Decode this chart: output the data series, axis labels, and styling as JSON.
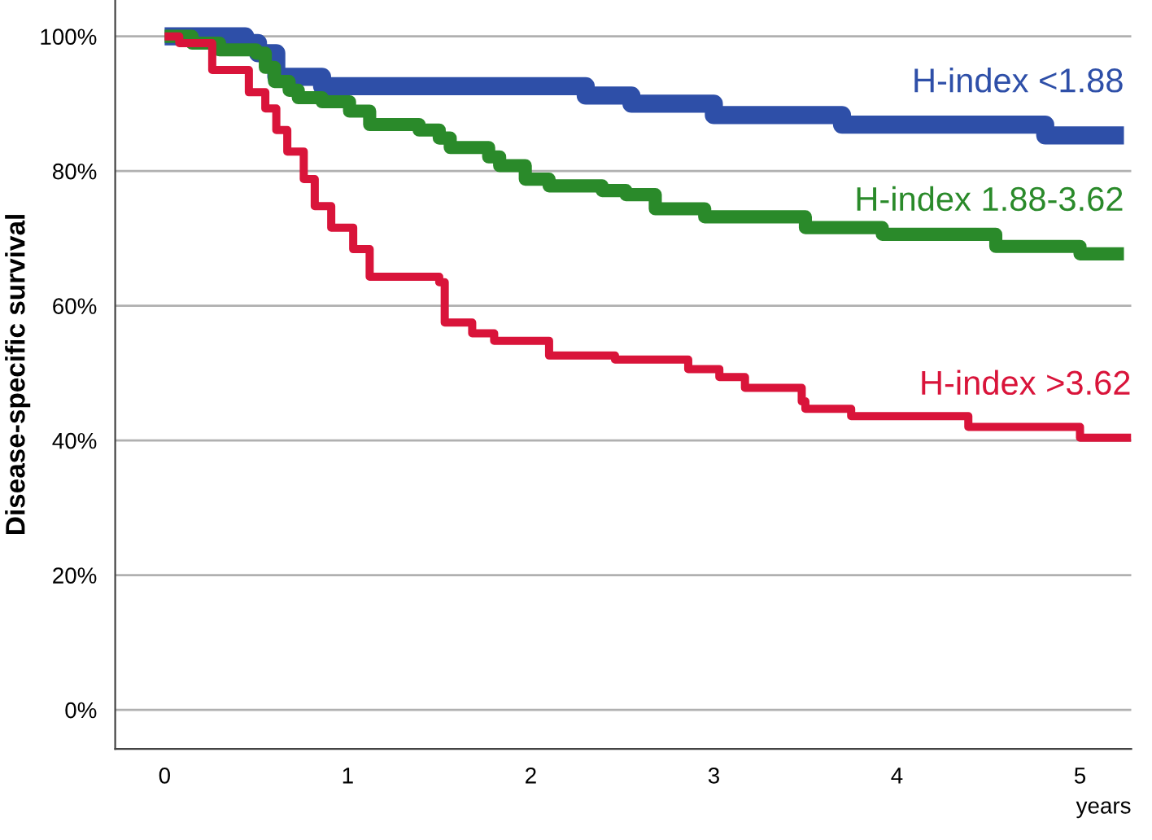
{
  "chart_data": {
    "type": "step",
    "xlabel": "years",
    "ylabel": "Disease-specific survival",
    "xlim": [
      -0.27,
      5.28
    ],
    "ylim": [
      -5.8,
      105.4
    ],
    "xticks": [
      0,
      1,
      2,
      3,
      4,
      5
    ],
    "yticks": [
      {
        "value": 0,
        "label": "0%"
      },
      {
        "value": 20,
        "label": "20%"
      },
      {
        "value": 40,
        "label": "40%"
      },
      {
        "value": 60,
        "label": "60%"
      },
      {
        "value": 80,
        "label": "80%"
      },
      {
        "value": 100,
        "label": "100%"
      }
    ],
    "grid": "y",
    "legend": false,
    "line_style": "solid",
    "marker": "none",
    "series": [
      {
        "name": "H-index <1.88",
        "color": "#2e4fa8",
        "x": [
          0,
          0.44,
          0.51,
          0.61,
          0.86,
          2.3,
          2.55,
          3.0,
          3.7,
          4.81,
          5.24
        ],
        "values": [
          100,
          99,
          97.5,
          94,
          92.6,
          91.2,
          90,
          88.3,
          86.9,
          85.3,
          85.3
        ]
      },
      {
        "name": "H-index 1.88-3.62",
        "color": "#2a8a2a",
        "x": [
          0,
          0.15,
          0.3,
          0.5,
          0.55,
          0.6,
          0.68,
          0.73,
          0.86,
          1.01,
          1.12,
          1.39,
          1.5,
          1.56,
          1.77,
          1.83,
          1.97,
          2.1,
          2.39,
          2.52,
          2.68,
          2.95,
          3.5,
          3.92,
          4.54,
          5.0,
          5.24
        ],
        "values": [
          100,
          99,
          98,
          97.5,
          95.4,
          93.3,
          92,
          90.9,
          90.3,
          88.9,
          86.9,
          86.1,
          84.9,
          83.5,
          82.1,
          80.8,
          78.8,
          77.8,
          77.1,
          76.5,
          74.4,
          73.2,
          71.6,
          70.6,
          68.8,
          67.7,
          67.7
        ]
      },
      {
        "name": "H-index >3.62",
        "color": "#d9143a",
        "x": [
          0,
          0.08,
          0.26,
          0.46,
          0.55,
          0.61,
          0.67,
          0.76,
          0.82,
          0.91,
          1.03,
          1.12,
          1.5,
          1.53,
          1.68,
          1.8,
          2.1,
          2.46,
          2.86,
          3.03,
          3.17,
          3.48,
          3.5,
          3.75,
          4.39,
          5.0,
          5.28
        ],
        "values": [
          100,
          99,
          95,
          91.7,
          89.3,
          86.1,
          82.9,
          78.8,
          74.8,
          71.6,
          68.4,
          64.3,
          63.5,
          57.5,
          55.9,
          54.8,
          52.6,
          52.0,
          50.6,
          49.4,
          47.8,
          45.8,
          44.7,
          43.6,
          42.0,
          40.4,
          40.4
        ]
      }
    ]
  }
}
